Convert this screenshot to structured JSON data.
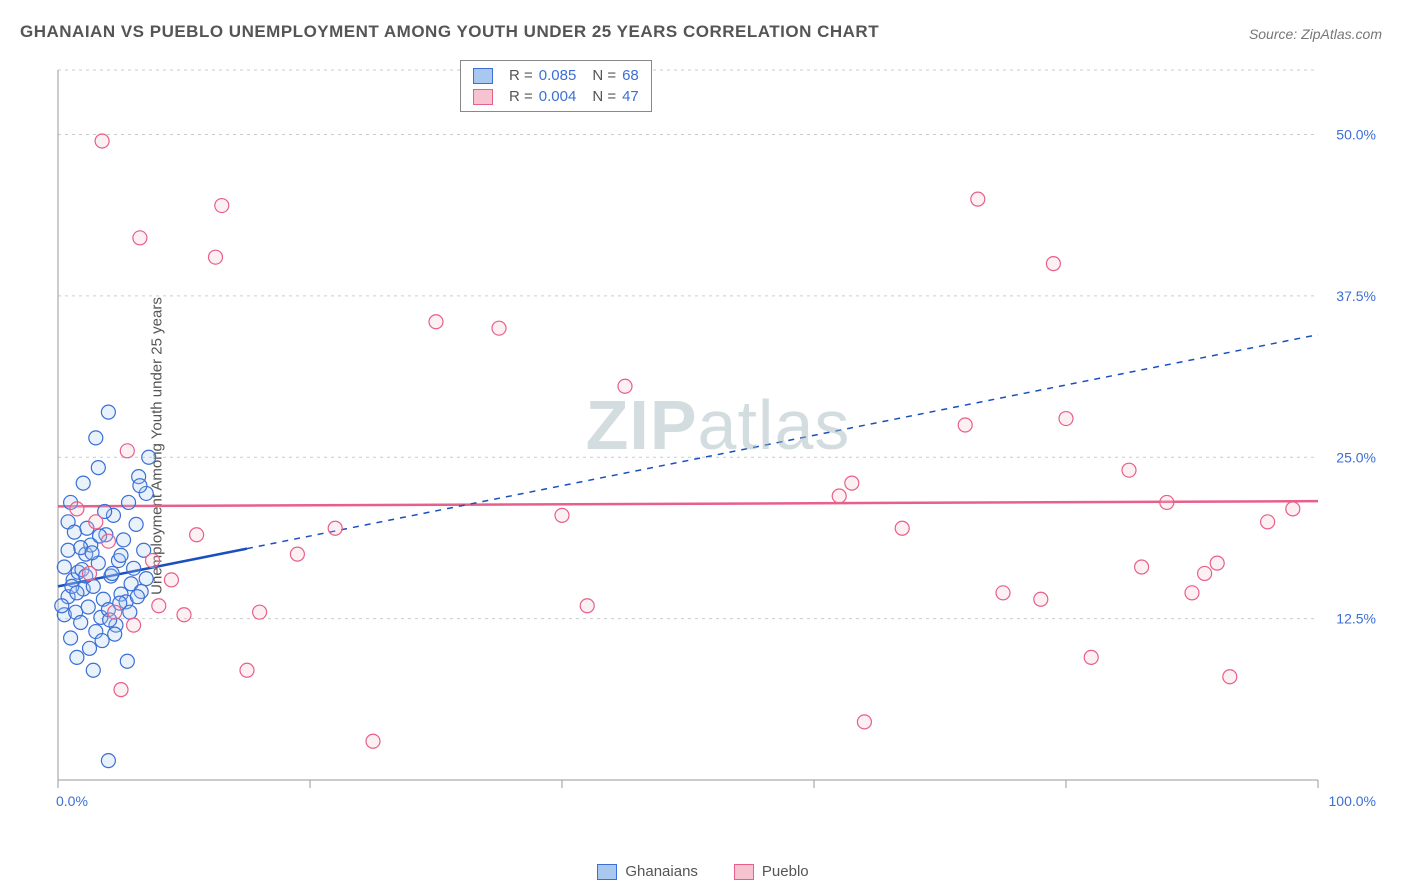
{
  "title": "GHANAIAN VS PUEBLO UNEMPLOYMENT AMONG YOUTH UNDER 25 YEARS CORRELATION CHART",
  "source_label": "Source: ZipAtlas.com",
  "y_axis_label": "Unemployment Among Youth under 25 years",
  "watermark": {
    "part1": "ZIP",
    "part2": "atlas"
  },
  "colors": {
    "series_a_fill": "#a8c8f0",
    "series_a_stroke": "#3b6fd6",
    "series_b_fill": "#f6c4d0",
    "series_b_stroke": "#e75f8b",
    "grid": "#cccccc",
    "axis": "#999999",
    "tick_label": "#3b6fd6",
    "text": "#555555",
    "trend_a": "#1a4fc0",
    "trend_b": "#e75f8b",
    "background": "#ffffff"
  },
  "chart": {
    "type": "scatter",
    "xlim": [
      0,
      100
    ],
    "ylim": [
      0,
      55
    ],
    "ygrid": [
      12.5,
      25.0,
      37.5,
      50.0
    ],
    "ytick_labels": [
      "12.5%",
      "25.0%",
      "37.5%",
      "50.0%"
    ],
    "xgrid": [
      0,
      20,
      40,
      60,
      80,
      100
    ],
    "x_axis_end_labels": {
      "left": "0.0%",
      "right": "100.0%"
    },
    "marker_radius": 7,
    "marker_fill_opacity": 0.25,
    "trend_line_a": {
      "x1": 0,
      "y1": 15.0,
      "x2": 100,
      "y2": 34.5,
      "solid_until_x": 15
    },
    "trend_line_b": {
      "x1": 0,
      "y1": 21.2,
      "x2": 100,
      "y2": 21.6
    },
    "series": [
      {
        "name": "Ghanaians",
        "R": "0.085",
        "N": "68",
        "points": [
          [
            0.5,
            12.8
          ],
          [
            0.8,
            14.2
          ],
          [
            1.0,
            11.0
          ],
          [
            1.2,
            15.5
          ],
          [
            1.4,
            13.0
          ],
          [
            1.6,
            16.1
          ],
          [
            1.8,
            12.2
          ],
          [
            2.0,
            14.8
          ],
          [
            2.2,
            17.5
          ],
          [
            2.4,
            13.4
          ],
          [
            2.6,
            18.2
          ],
          [
            2.8,
            15.0
          ],
          [
            3.0,
            11.5
          ],
          [
            3.2,
            16.8
          ],
          [
            3.4,
            12.6
          ],
          [
            3.6,
            14.0
          ],
          [
            3.8,
            19.0
          ],
          [
            4.0,
            13.2
          ],
          [
            4.2,
            15.8
          ],
          [
            4.4,
            20.5
          ],
          [
            4.6,
            12.0
          ],
          [
            4.8,
            17.0
          ],
          [
            5.0,
            14.4
          ],
          [
            5.2,
            18.6
          ],
          [
            5.4,
            13.8
          ],
          [
            5.6,
            21.5
          ],
          [
            5.8,
            15.2
          ],
          [
            6.0,
            16.4
          ],
          [
            6.2,
            19.8
          ],
          [
            6.4,
            23.5
          ],
          [
            6.6,
            14.6
          ],
          [
            6.8,
            17.8
          ],
          [
            7.0,
            22.2
          ],
          [
            7.2,
            25.0
          ],
          [
            3.0,
            26.5
          ],
          [
            3.2,
            24.2
          ],
          [
            2.0,
            23.0
          ],
          [
            4.0,
            28.5
          ],
          [
            1.5,
            9.5
          ],
          [
            2.5,
            10.2
          ],
          [
            3.5,
            10.8
          ],
          [
            4.5,
            11.3
          ],
          [
            0.8,
            20.0
          ],
          [
            1.0,
            21.5
          ],
          [
            1.3,
            19.2
          ],
          [
            6.5,
            22.8
          ],
          [
            2.8,
            8.5
          ],
          [
            5.5,
            9.2
          ],
          [
            0.5,
            16.5
          ],
          [
            1.8,
            18.0
          ],
          [
            2.3,
            19.5
          ],
          [
            3.7,
            20.8
          ],
          [
            4.3,
            16.0
          ],
          [
            5.0,
            17.4
          ],
          [
            5.7,
            13.0
          ],
          [
            6.3,
            14.2
          ],
          [
            7.0,
            15.6
          ],
          [
            0.3,
            13.5
          ],
          [
            1.1,
            15.0
          ],
          [
            1.9,
            16.3
          ],
          [
            2.7,
            17.6
          ],
          [
            3.3,
            18.9
          ],
          [
            4.1,
            12.4
          ],
          [
            4.9,
            13.7
          ],
          [
            4.0,
            1.5
          ],
          [
            0.8,
            17.8
          ],
          [
            1.5,
            14.5
          ],
          [
            2.2,
            15.8
          ]
        ]
      },
      {
        "name": "Pueblo",
        "R": "0.004",
        "N": "47",
        "points": [
          [
            3.5,
            49.5
          ],
          [
            6.5,
            42.0
          ],
          [
            13.0,
            44.5
          ],
          [
            12.5,
            40.5
          ],
          [
            5.0,
            7.0
          ],
          [
            6.0,
            12.0
          ],
          [
            8.0,
            13.5
          ],
          [
            9.0,
            15.5
          ],
          [
            10.0,
            12.8
          ],
          [
            15.0,
            8.5
          ],
          [
            16.0,
            13.0
          ],
          [
            19.0,
            17.5
          ],
          [
            25.0,
            3.0
          ],
          [
            22.0,
            19.5
          ],
          [
            30.0,
            35.5
          ],
          [
            35.0,
            35.0
          ],
          [
            40.0,
            20.5
          ],
          [
            42.0,
            13.5
          ],
          [
            45.0,
            30.5
          ],
          [
            62.0,
            22.0
          ],
          [
            63.0,
            23.0
          ],
          [
            64.0,
            4.5
          ],
          [
            67.0,
            19.5
          ],
          [
            72.0,
            27.5
          ],
          [
            73.0,
            45.0
          ],
          [
            75.0,
            14.5
          ],
          [
            78.0,
            14.0
          ],
          [
            79.0,
            40.0
          ],
          [
            80.0,
            28.0
          ],
          [
            82.0,
            9.5
          ],
          [
            85.0,
            24.0
          ],
          [
            86.0,
            16.5
          ],
          [
            88.0,
            21.5
          ],
          [
            90.0,
            14.5
          ],
          [
            91.0,
            16.0
          ],
          [
            92.0,
            16.8
          ],
          [
            93.0,
            8.0
          ],
          [
            96.0,
            20.0
          ],
          [
            98.0,
            21.0
          ],
          [
            5.5,
            25.5
          ],
          [
            4.0,
            18.5
          ],
          [
            3.0,
            20.0
          ],
          [
            2.5,
            16.0
          ],
          [
            7.5,
            17.0
          ],
          [
            11.0,
            19.0
          ],
          [
            4.5,
            13.0
          ],
          [
            1.5,
            21.0
          ]
        ]
      }
    ]
  },
  "bottom_legend": [
    {
      "label": "Ghanaians",
      "swatch": "a"
    },
    {
      "label": "Pueblo",
      "swatch": "b"
    }
  ]
}
